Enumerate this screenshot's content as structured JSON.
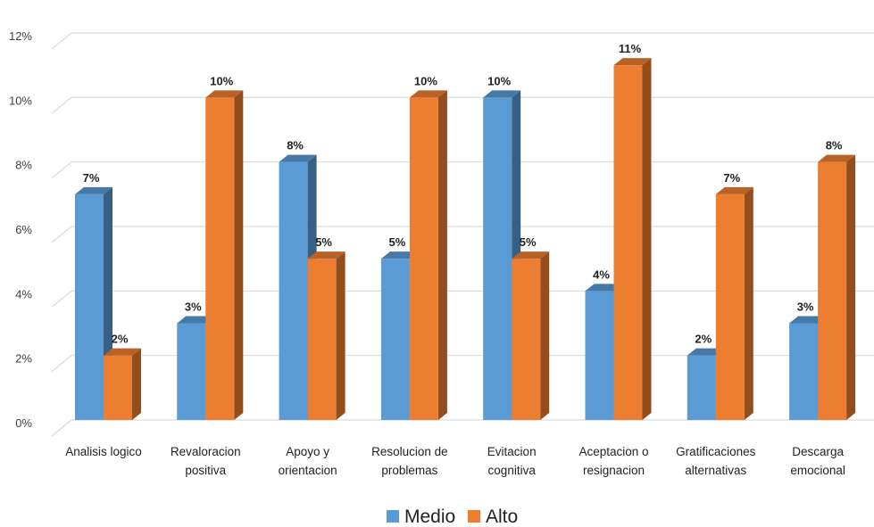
{
  "chart_data": {
    "type": "bar",
    "title": "",
    "xlabel": "",
    "ylabel": "",
    "categories": [
      [
        "Analisis logico"
      ],
      [
        "Revaloracion",
        "positiva"
      ],
      [
        "Apoyo y",
        "orientacion"
      ],
      [
        "Resolucion de",
        "problemas"
      ],
      [
        "Evitacion",
        "cognitiva"
      ],
      [
        "Aceptacion o",
        "resignacion"
      ],
      [
        "Gratificaciones",
        "alternativas"
      ],
      [
        "Descarga",
        "emocional"
      ]
    ],
    "series": [
      {
        "name": "Medio",
        "color": "#5b9bd5",
        "values": [
          7,
          3,
          8,
          5,
          10,
          4,
          2,
          3
        ],
        "labels": [
          "7%",
          "3%",
          "8%",
          "5%",
          "10%",
          "4%",
          "2%",
          "3%"
        ]
      },
      {
        "name": "Alto",
        "color": "#ed7d31",
        "values": [
          2,
          10,
          5,
          10,
          5,
          11,
          7,
          8
        ],
        "labels": [
          "2%",
          "10%",
          "5%",
          "10%",
          "5%",
          "11%",
          "7%",
          "8%"
        ]
      }
    ],
    "ylim": [
      0,
      12
    ],
    "yticks": [
      {
        "value": 0,
        "label": "0%"
      },
      {
        "value": 2,
        "label": "2%"
      },
      {
        "value": 4,
        "label": "4%"
      },
      {
        "value": 6,
        "label": "6%"
      },
      {
        "value": 8,
        "label": "8%"
      },
      {
        "value": 10,
        "label": "10%"
      },
      {
        "value": 12,
        "label": "12%"
      }
    ],
    "grid": true,
    "legend_position": "bottom",
    "style": "3d-clustered-column"
  }
}
